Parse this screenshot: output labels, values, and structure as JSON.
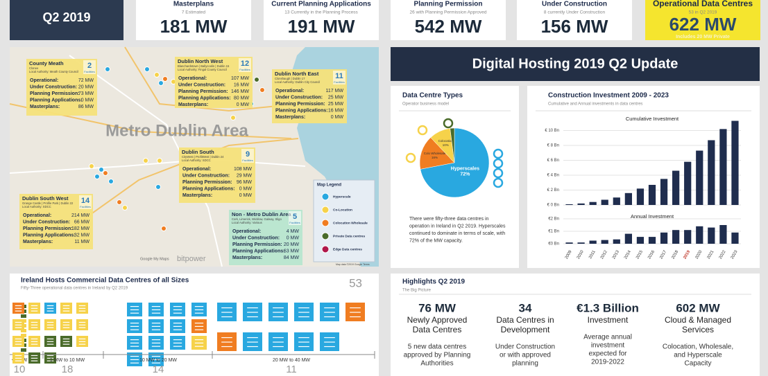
{
  "header": {
    "label": "Q2 2019"
  },
  "kpis": [
    {
      "title": "Masterplans",
      "subtitle": "7 Estimated",
      "value": "181 MW"
    },
    {
      "title": "Current Planning Applications",
      "subtitle": "13 Currently in the Planning Process",
      "value": "191 MW"
    },
    {
      "title": "Planning Permission",
      "subtitle": "26 with Planning Permission Approved",
      "value": "542 MW"
    },
    {
      "title": "Under Construction",
      "subtitle": "8 currently Under Construction",
      "value": "156 MW"
    },
    {
      "title": "Operational Data Centres",
      "subtitle": "53 in Q2 2019",
      "value": "622 MW",
      "note": "Includes 20 MW Private"
    }
  ],
  "map": {
    "area_label": "Metro Dublin Area",
    "watermark": "bitpower",
    "credit": "Google My Maps",
    "attribution": "Map data ©2019 Google  Terms",
    "regions": [
      {
        "title": "County Meath",
        "lines": [
          "Clonee",
          "Local Authority: Meath County Council"
        ],
        "count": "2",
        "count_label": "Facilities",
        "rows": [
          [
            "Operational:",
            "72 MW"
          ],
          [
            "Under Construction:",
            "20 MW"
          ],
          [
            "Planning Permission:",
            "73 MW"
          ],
          [
            "Planning Applications:",
            "0 MW"
          ],
          [
            "Masterplans:",
            "86 MW"
          ]
        ]
      },
      {
        "title": "Dublin North West",
        "lines": [
          "Blanchardstown | Ballycoolin | Dublin 15",
          "Local Authority: Fingal County Council"
        ],
        "count": "12",
        "count_label": "Facilities",
        "rows": [
          [
            "Operational:",
            "107 MW"
          ],
          [
            "Under Construction:",
            "16 MW"
          ],
          [
            "Planning Permission:",
            "146 MW"
          ],
          [
            "Planning Applications:",
            "80 MW"
          ],
          [
            "Masterplans:",
            "0 MW"
          ]
        ]
      },
      {
        "title": "Dublin North East",
        "lines": [
          "Clonshaugh | Dublin 17",
          "Local Authority: Dublin City Council"
        ],
        "count": "11",
        "count_label": "Facilities",
        "rows": [
          [
            "Operational:",
            "117 MW"
          ],
          [
            "Under Construction:",
            "25 MW"
          ],
          [
            "Planning Permission:",
            "25 MW"
          ],
          [
            "Planning Applications:",
            "16 MW"
          ],
          [
            "Masterplans:",
            "0 MW"
          ]
        ]
      },
      {
        "title": "Dublin South",
        "lines": [
          "CityWest | ProfitWest | Dublin 24",
          "Local Authority: SDCC"
        ],
        "count": "9",
        "count_label": "Facilities",
        "rows": [
          [
            "Operational:",
            "108 MW"
          ],
          [
            "Under Construction:",
            "29 MW"
          ],
          [
            "Planning Permission:",
            "96 MW"
          ],
          [
            "Planning Applications:",
            "0 MW"
          ],
          [
            "Masterplans:",
            "0 MW"
          ]
        ]
      },
      {
        "title": "Dublin South West",
        "lines": [
          "Grange Castle | Profile Park | Dublin 22",
          "Local Authority: SDCC"
        ],
        "count": "14",
        "count_label": "Facilities",
        "rows": [
          [
            "Operational:",
            "214 MW"
          ],
          [
            "Under Construction:",
            "66 MW"
          ],
          [
            "Planning Permission:",
            "182 MW"
          ],
          [
            "Planning Applications:",
            "32 MW"
          ],
          [
            "Masterplans:",
            "11 MW"
          ]
        ]
      },
      {
        "title": "Non - Metro Dublin Area",
        "lines": [
          "Cork, Limerick, Wicklow, Galway, Sligo",
          "Local Authority: Various"
        ],
        "count": "5",
        "count_label": "Facilities",
        "rows": [
          [
            "Operational:",
            "4 MW"
          ],
          [
            "Under Construction:",
            "0 MW"
          ],
          [
            "Planning Permission:",
            "20 MW"
          ],
          [
            "Planning Applications:",
            "63 MW"
          ],
          [
            "Masterplans:",
            "84 MW"
          ]
        ]
      }
    ],
    "legend": {
      "title": "Map Legend",
      "items": [
        {
          "name": "Hyperscale",
          "color": "#29a8e0"
        },
        {
          "name": "Co-Location",
          "color": "#f6d24a"
        },
        {
          "name": "Colocation Wholesale",
          "color": "#f07d21"
        },
        {
          "name": "Private Data centres",
          "color": "#4a6b2a"
        },
        {
          "name": "Edge Data centres",
          "color": "#b0174a"
        }
      ]
    }
  },
  "banner": {
    "title": "Digital Hosting 2019 Q2 Update"
  },
  "types": {
    "type": "pie",
    "title": "Data Centre Types",
    "subtitle": "Operator business model",
    "categories": [
      "Hyperscales",
      "Colo Wholesale",
      "Colocation",
      null
    ],
    "values": [
      72,
      16,
      10,
      2
    ],
    "value_labels": [
      "72%",
      "16%",
      "10%",
      null
    ],
    "colors": [
      "#29a8e0",
      "#f07d21",
      "#f6d24a",
      "#4a6b2a"
    ],
    "text": [
      "There were fifty-three data centres in",
      "operation in Ireland in Q2 2019. Hyperscales",
      "continued to dominate in terms of scale, with",
      "72% of the MW capacity."
    ]
  },
  "investment": {
    "type": "bar",
    "title": "Construction Investment 2009 - 2023",
    "subtitle": "Cumulative and Annual investments in data centres",
    "categories": [
      "2009",
      "2010",
      "2011",
      "2012",
      "2013",
      "2014",
      "2015",
      "2016",
      "2017",
      "2018",
      "2019",
      "2020",
      "2021",
      "2022",
      "2023"
    ],
    "highlight_category": "2019",
    "highlight_color": "#c0392b",
    "color": "#1f2d4e",
    "cumulative": {
      "title": "Cumulative Investment",
      "values": [
        0.1,
        0.2,
        0.4,
        0.7,
        1.0,
        1.6,
        2.2,
        2.7,
        3.5,
        4.6,
        5.8,
        7.3,
        8.7,
        10.2,
        11.3
      ],
      "ylim": [
        0,
        12
      ],
      "yticks": [
        {
          "value": 0,
          "label": "€ 0 Bn"
        },
        {
          "value": 2,
          "label": "€ 2 Bn"
        },
        {
          "value": 4,
          "label": "€ 4 Bn"
        },
        {
          "value": 6,
          "label": "€ 6 Bn"
        },
        {
          "value": 8,
          "label": "€ 8 Bn"
        },
        {
          "value": 10,
          "label": "€ 10 Bn"
        }
      ]
    },
    "annual": {
      "title": "Annual Investment",
      "values": [
        0.1,
        0.1,
        0.25,
        0.3,
        0.35,
        0.8,
        0.55,
        0.55,
        0.9,
        1.1,
        1.1,
        1.4,
        1.3,
        1.5,
        0.9
      ],
      "ylim": [
        0,
        2
      ],
      "yticks": [
        {
          "value": 0,
          "label": "€0 Bn"
        },
        {
          "value": 1,
          "label": "€1 Bn"
        },
        {
          "value": 2,
          "label": "€2 Bn"
        }
      ]
    }
  },
  "sizes": {
    "title": "Ireland Hosts Commercial Data Centres of all Sizes",
    "subtitle": "Fifty-Three operational data centres in Ireland by Q2 2019",
    "total": "53",
    "palette": {
      "blue": "#29a8e0",
      "orange": "#f07d21",
      "yellow": "#f6d24a",
      "green": "#4a6b2a"
    },
    "groups": [
      {
        "label": "<1 MW",
        "count": 10,
        "icons": [
          "green",
          "green",
          "green",
          "yellow",
          "yellow",
          "yellow",
          "yellow",
          "green",
          "green",
          "green"
        ]
      },
      {
        "label": "1 MW to 10 MW",
        "count": 18,
        "icons": [
          "orange",
          "yellow",
          "blue",
          "yellow",
          "yellow",
          "yellow",
          "yellow",
          "yellow",
          "yellow",
          "yellow",
          "yellow",
          "yellow",
          "green",
          "green",
          "yellow",
          "yellow",
          "green",
          "green"
        ]
      },
      {
        "label": "10 MW to 20 MW",
        "count": 14,
        "icons": [
          "blue",
          "blue",
          "blue",
          "blue",
          "blue",
          "blue",
          "blue",
          "orange",
          "blue",
          "blue",
          "blue",
          "yellow",
          "blue",
          "blue"
        ]
      },
      {
        "label": "20 MW to 40 MW",
        "count": 11,
        "icons": [
          "blue",
          "blue",
          "blue",
          "blue",
          "blue",
          "orange",
          "orange",
          "blue",
          "blue",
          "blue",
          "blue"
        ]
      }
    ]
  },
  "highlights": {
    "title": "Highlights Q2 2019",
    "subtitle": "The Big Picture",
    "items": [
      {
        "value": "76 MW",
        "title": [
          "Newly Approved",
          "Data Centres"
        ],
        "text": [
          "5 new data centres",
          "approved by Planning",
          "Authorities"
        ]
      },
      {
        "value": "34",
        "title": [
          "Data Centres in",
          "Development"
        ],
        "text": [
          "Under Construction",
          "or with approved",
          "planning"
        ]
      },
      {
        "value": "€1.3 Billion",
        "title": [
          "Investment"
        ],
        "text": [
          "Average annual",
          "investment",
          "expected for",
          "2019-2022"
        ]
      },
      {
        "value": "602 MW",
        "title": [
          "Cloud & Managed",
          "Services"
        ],
        "text": [
          "Colocation, Wholesale,",
          "and Hyperscale",
          "Capacity"
        ]
      }
    ]
  }
}
